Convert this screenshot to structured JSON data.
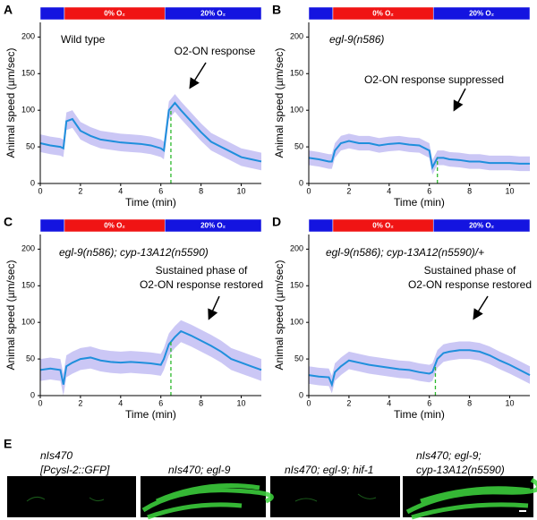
{
  "chart_data": [
    {
      "type": "line",
      "panel": "A",
      "annotation": "Wild type",
      "annotation_italic": false,
      "callout": [
        "O2-ON response"
      ],
      "x": [
        0,
        0.5,
        1,
        1.15,
        1.3,
        1.6,
        2,
        2.5,
        3,
        3.5,
        4,
        4.5,
        5,
        5.5,
        6,
        6.15,
        6.4,
        6.7,
        7,
        7.5,
        8,
        8.5,
        9,
        9.5,
        10,
        10.5,
        11
      ],
      "series": [
        {
          "color": "#1f8fdc",
          "values": [
            55,
            52,
            50,
            48,
            85,
            88,
            72,
            65,
            60,
            58,
            56,
            55,
            54,
            52,
            48,
            45,
            100,
            110,
            100,
            85,
            70,
            57,
            50,
            43,
            36,
            33,
            30
          ]
        }
      ],
      "error": 12,
      "marker_x": 6.5,
      "xlabel": "Time (min)",
      "ylabel": "Animal speed (µm/sec)",
      "xlim": [
        0,
        11
      ],
      "ylim": [
        0,
        220
      ],
      "xticks": [
        0,
        2,
        4,
        6,
        8,
        10
      ],
      "yticks": [
        0,
        50,
        100,
        150,
        200
      ],
      "phases": [
        {
          "start": 0,
          "end": 1.2,
          "color": "#1414e0"
        },
        {
          "start": 1.2,
          "end": 6.2,
          "color": "#f01414",
          "label": "0% O₂"
        },
        {
          "start": 6.2,
          "end": 11,
          "color": "#1414e0",
          "label": "20% O₂"
        }
      ]
    },
    {
      "type": "line",
      "panel": "B",
      "annotation": "egl-9(n586)",
      "annotation_italic": true,
      "callout": [
        "O2-ON response suppressed"
      ],
      "x": [
        0,
        0.5,
        1,
        1.15,
        1.3,
        1.6,
        2,
        2.5,
        3,
        3.5,
        4,
        4.5,
        5,
        5.5,
        6,
        6.15,
        6.4,
        6.7,
        7,
        7.5,
        8,
        8.5,
        9,
        9.5,
        10,
        10.5,
        11
      ],
      "series": [
        {
          "color": "#1f8fdc",
          "values": [
            35,
            33,
            30,
            30,
            45,
            55,
            58,
            55,
            55,
            52,
            54,
            55,
            53,
            52,
            45,
            22,
            35,
            35,
            33,
            32,
            30,
            30,
            28,
            28,
            28,
            27,
            27
          ]
        }
      ],
      "error": 10,
      "marker_x": 6.4,
      "xlabel": "Time (min)",
      "ylabel": "Animal speed (µm/sec)",
      "xlim": [
        0,
        11
      ],
      "ylim": [
        0,
        220
      ],
      "xticks": [
        0,
        2,
        4,
        6,
        8,
        10
      ],
      "yticks": [
        0,
        50,
        100,
        150,
        200
      ],
      "phases": [
        {
          "start": 0,
          "end": 1.2,
          "color": "#1414e0"
        },
        {
          "start": 1.2,
          "end": 6.2,
          "color": "#f01414",
          "label": "0% O₂"
        },
        {
          "start": 6.2,
          "end": 11,
          "color": "#1414e0",
          "label": "20% O₂"
        }
      ]
    },
    {
      "type": "line",
      "panel": "C",
      "annotation": "egl-9(n586); cyp-13A12(n5590)",
      "annotation_italic": true,
      "callout": [
        "Sustained phase of",
        "O2-ON response restored"
      ],
      "x": [
        0,
        0.5,
        1,
        1.15,
        1.3,
        1.6,
        2,
        2.5,
        3,
        3.5,
        4,
        4.5,
        5,
        5.5,
        6,
        6.15,
        6.4,
        6.7,
        7,
        7.5,
        8,
        8.5,
        9,
        9.5,
        10,
        10.5,
        11
      ],
      "series": [
        {
          "color": "#1f8fdc",
          "values": [
            35,
            37,
            35,
            15,
            40,
            45,
            50,
            52,
            48,
            46,
            45,
            46,
            45,
            44,
            42,
            50,
            70,
            80,
            88,
            82,
            75,
            68,
            60,
            50,
            45,
            40,
            35
          ]
        }
      ],
      "error": 15,
      "marker_x": 6.5,
      "xlabel": "Time (min)",
      "ylabel": "Animal speed (µm/sec)",
      "xlim": [
        0,
        11
      ],
      "ylim": [
        0,
        220
      ],
      "xticks": [
        0,
        2,
        4,
        6,
        8,
        10
      ],
      "yticks": [
        0,
        50,
        100,
        150,
        200
      ],
      "phases": [
        {
          "start": 0,
          "end": 1.2,
          "color": "#1414e0"
        },
        {
          "start": 1.2,
          "end": 6.2,
          "color": "#f01414",
          "label": "0% O₂"
        },
        {
          "start": 6.2,
          "end": 11,
          "color": "#1414e0",
          "label": "20% O₂"
        }
      ]
    },
    {
      "type": "line",
      "panel": "D",
      "annotation": "egl-9(n586); cyp-13A12(n5590)/+",
      "annotation_italic": true,
      "callout": [
        "Sustained phase of",
        "O2-ON response restored"
      ],
      "x": [
        0,
        0.5,
        1,
        1.15,
        1.3,
        1.6,
        2,
        2.5,
        3,
        3.5,
        4,
        4.5,
        5,
        5.5,
        6,
        6.15,
        6.4,
        6.7,
        7,
        7.5,
        8,
        8.5,
        9,
        9.5,
        10,
        10.5,
        11
      ],
      "series": [
        {
          "color": "#1f8fdc",
          "values": [
            28,
            26,
            25,
            15,
            32,
            40,
            48,
            45,
            42,
            40,
            38,
            36,
            35,
            32,
            30,
            32,
            50,
            58,
            60,
            62,
            62,
            60,
            55,
            48,
            42,
            35,
            28
          ]
        }
      ],
      "error": 12,
      "marker_x": 6.3,
      "xlabel": "Time (min)",
      "ylabel": "Animal speed (µm/sec)",
      "xlim": [
        0,
        11
      ],
      "ylim": [
        0,
        220
      ],
      "xticks": [
        0,
        2,
        4,
        6,
        8,
        10
      ],
      "yticks": [
        0,
        50,
        100,
        150,
        200
      ],
      "phases": [
        {
          "start": 0,
          "end": 1.2,
          "color": "#1414e0"
        },
        {
          "start": 1.2,
          "end": 6.2,
          "color": "#f01414",
          "label": "0% O₂"
        },
        {
          "start": 6.2,
          "end": 11,
          "color": "#1414e0",
          "label": "20% O₂"
        }
      ]
    }
  ],
  "panel_e": {
    "panel": "E",
    "images": [
      {
        "label": [
          "nIs470",
          "[Pcysl-2::GFP]"
        ]
      },
      {
        "label": [
          "nIs470; egl-9"
        ]
      },
      {
        "label": [
          "nIs470; egl-9; hif-1"
        ]
      },
      {
        "label": [
          "nIs470; egl-9;",
          "cyp-13A12(n5590)"
        ]
      }
    ]
  }
}
